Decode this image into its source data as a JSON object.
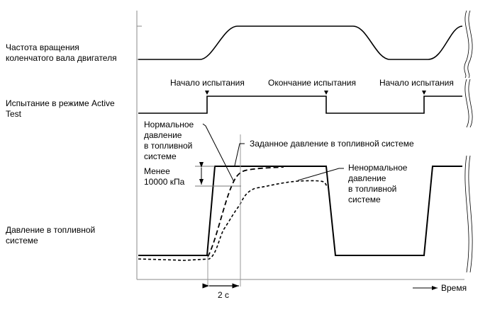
{
  "labels": {
    "rpm": [
      "Частота вращения",
      "коленчатого вала двигателя"
    ],
    "active_test": [
      "Испытание в режиме Active",
      "Test"
    ],
    "pressure": [
      "Давление в топливной",
      "системе"
    ],
    "start1": "Начало испытания",
    "end": "Окончание испытания",
    "start2": "Начало испытания",
    "normal": [
      "Нормальное",
      "давление",
      "в топливной",
      "системе"
    ],
    "target": "Заданное давление в топливной системе",
    "less_than": [
      "Менее",
      "10000 кПа"
    ],
    "abnormal": [
      "Ненормальное",
      "давление",
      "в топливной",
      "системе"
    ],
    "duration": "2 с",
    "time": "Время"
  },
  "colors": {
    "line": "#000000",
    "guide": "#999999"
  }
}
